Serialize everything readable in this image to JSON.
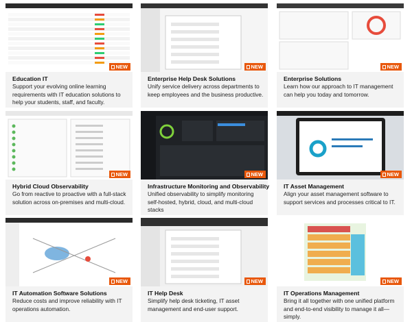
{
  "cards": [
    {
      "title": "Education IT",
      "description": "Support your evolving online learning requirements with IT education solutions to help your students, staff, and faculty.",
      "badge": "NEW"
    },
    {
      "title": "Enterprise Help Desk Solutions",
      "description": "Unify service delivery across departments to keep employees and the business productive.",
      "badge": "NEW"
    },
    {
      "title": "Enterprise Solutions",
      "description": "Learn how our approach to IT management can help you today and tomorrow.",
      "badge": "NEW"
    },
    {
      "title": "Hybrid Cloud Observability",
      "description": "Go from reactive to proactive with a full-stack solution across on-premises and multi-cloud.",
      "badge": "NEW"
    },
    {
      "title": "Infrastructure Monitoring and Observability",
      "description": "Unified observability to simplify monitoring self-hosted, hybrid, cloud, and multi-cloud stacks",
      "badge": "NEW"
    },
    {
      "title": "IT Asset Management",
      "description": "Align your asset management software to support services and processes critical to IT.",
      "badge": "NEW"
    },
    {
      "title": "IT Automation Software Solutions",
      "description": "Reduce costs and improve reliability with IT operations automation.",
      "badge": "NEW"
    },
    {
      "title": "IT Help Desk",
      "description": "Simplify help desk ticketing, IT asset management and end-user support.",
      "badge": "NEW"
    },
    {
      "title": "IT Operations Management",
      "description": "Bring it all together with one unified platform and end-to-end visibility to manage it all—simply.",
      "badge": "NEW"
    }
  ]
}
